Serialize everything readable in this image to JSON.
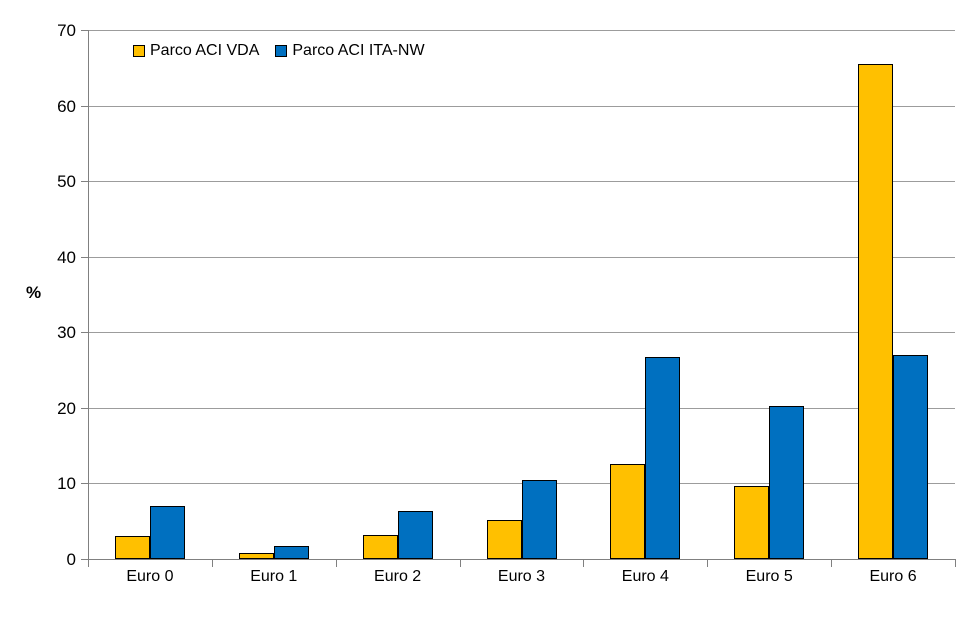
{
  "chart_data": {
    "type": "bar",
    "title": "",
    "xlabel": "",
    "ylabel": "%",
    "categories": [
      "Euro 0",
      "Euro 1",
      "Euro 2",
      "Euro 3",
      "Euro 4",
      "Euro 5",
      "Euro 6"
    ],
    "series": [
      {
        "name": "Parco ACI VDA",
        "color": "#FFC000",
        "values": [
          3.0,
          0.8,
          3.2,
          5.1,
          12.6,
          9.6,
          65.5
        ]
      },
      {
        "name": "Parco ACI ITA-NW",
        "color": "#0070C0",
        "values": [
          7.0,
          1.7,
          6.4,
          10.4,
          26.7,
          20.3,
          27.0
        ]
      }
    ],
    "ylim": [
      0,
      70
    ],
    "yticks": [
      0,
      10,
      20,
      30,
      40,
      50,
      60,
      70
    ],
    "grid": true,
    "legend_position": "top-left",
    "colors": {
      "bar_border": "#000000",
      "gridline": "#9C9C9C",
      "axis": "#808080",
      "background": "#FFFFFF",
      "text": "#000000"
    }
  }
}
